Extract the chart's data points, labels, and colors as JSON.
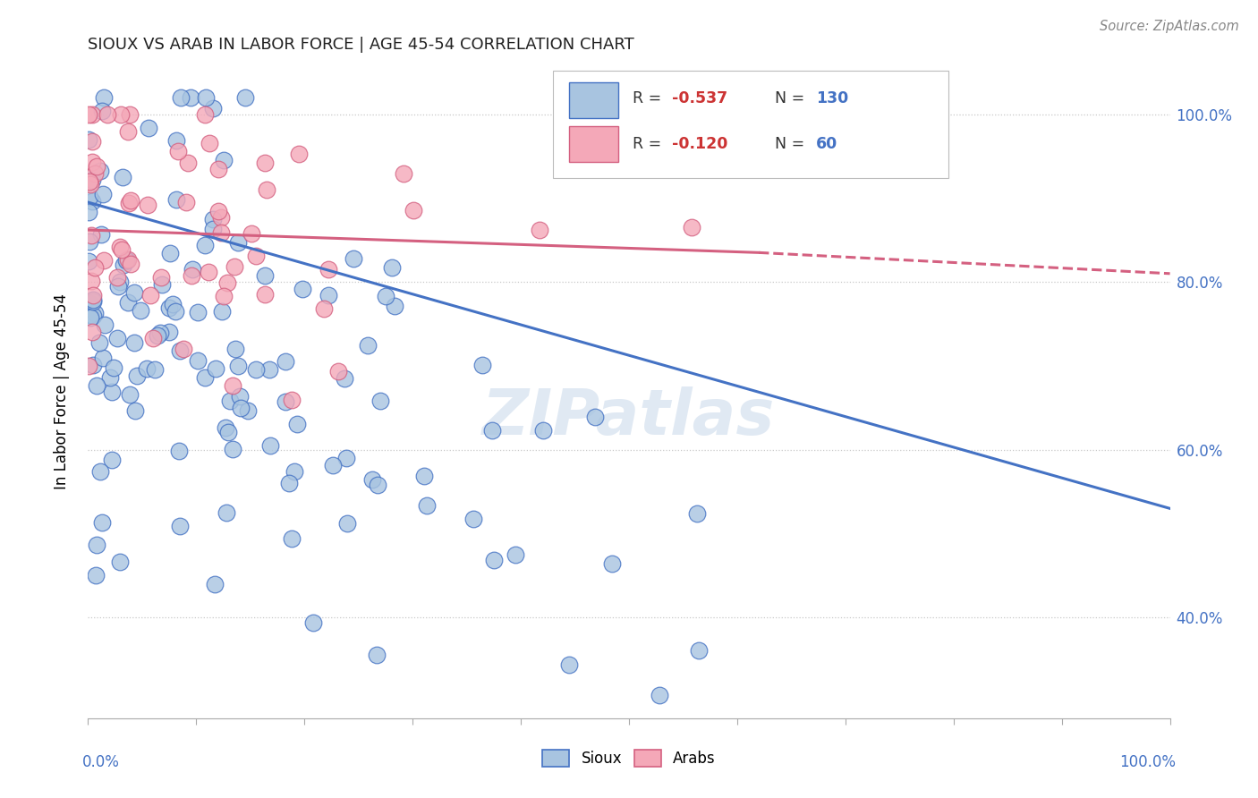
{
  "title": "SIOUX VS ARAB IN LABOR FORCE | AGE 45-54 CORRELATION CHART",
  "source_text": "Source: ZipAtlas.com",
  "ylabel": "In Labor Force | Age 45-54",
  "legend_sioux": "Sioux",
  "legend_arabs": "Arabs",
  "R_sioux": -0.537,
  "N_sioux": 130,
  "R_arabs": -0.12,
  "N_arabs": 60,
  "sioux_color": "#a8c4e0",
  "arabs_color": "#f4a8b8",
  "sioux_line_color": "#4472c4",
  "arabs_line_color": "#d46080",
  "background_color": "#ffffff",
  "watermark": "ZIPatlas",
  "sioux_regline": [
    0.0,
    0.895,
    1.0,
    0.53
  ],
  "arabs_regline_solid": [
    0.0,
    0.862,
    0.62,
    0.835
  ],
  "arabs_regline_dashed": [
    0.62,
    0.835,
    1.0,
    0.81
  ],
  "xlim": [
    0.0,
    1.0
  ],
  "ylim": [
    0.28,
    1.06
  ],
  "yticks": [
    0.4,
    0.6,
    0.8,
    1.0
  ],
  "ytick_labels": [
    "40.0%",
    "60.0%",
    "80.0%",
    "100.0%"
  ],
  "figsize": [
    14.06,
    8.92
  ],
  "dpi": 100
}
